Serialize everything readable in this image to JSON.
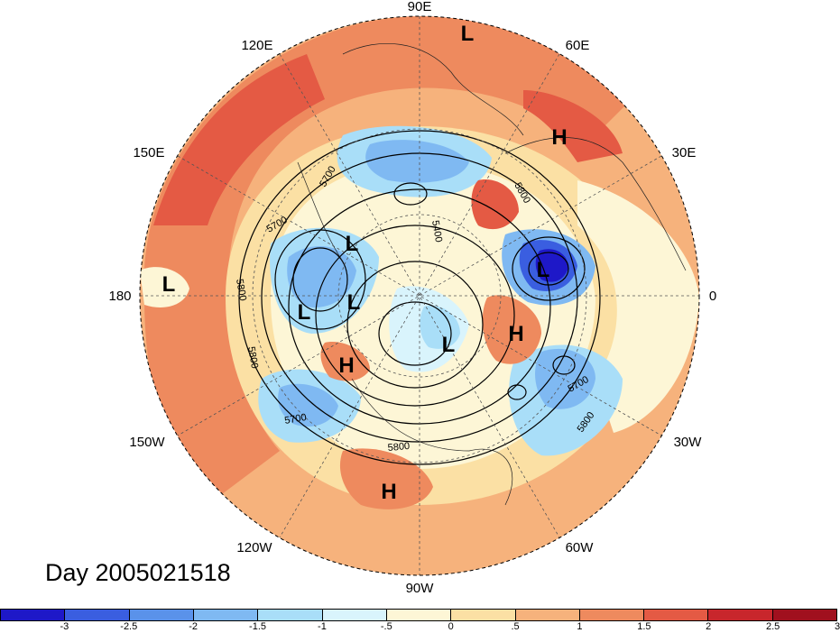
{
  "title": "Day 2005021518",
  "longitude_labels": {
    "top": "90E",
    "top_right": "60E",
    "right_upper": "30E",
    "right": "0",
    "right_lower": "30W",
    "bottom_right": "60W",
    "bottom": "90W",
    "bottom_left": "120W",
    "left_lower": "150W",
    "left": "180",
    "left_upper": "150E",
    "top_left": "120E"
  },
  "pressure_centers": [
    {
      "type": "L",
      "label": "L"
    },
    {
      "type": "L",
      "label": "L"
    },
    {
      "type": "L",
      "label": "L"
    },
    {
      "type": "L",
      "label": "L"
    },
    {
      "type": "L",
      "label": "L"
    },
    {
      "type": "L",
      "label": "L"
    },
    {
      "type": "L",
      "label": "L"
    },
    {
      "type": "H",
      "label": "H"
    },
    {
      "type": "H",
      "label": "H"
    },
    {
      "type": "H",
      "label": "H"
    },
    {
      "type": "H",
      "label": "H"
    }
  ],
  "contour_labels": [
    "5700",
    "5800",
    "5400",
    "5700",
    "5800",
    "5700",
    "5800",
    "5700",
    "5800",
    "5800"
  ],
  "colorbar": {
    "ticks": [
      "-3",
      "-2.5",
      "-2",
      "-1.5",
      "-1",
      "-.5",
      "0",
      ".5",
      "1",
      "1.5",
      "2",
      "2.5",
      "3"
    ],
    "colors": [
      "#1e18c8",
      "#3a5ee0",
      "#5a92ea",
      "#7fb9f2",
      "#a9def8",
      "#d9f4fc",
      "#fdf6d6",
      "#fbe0a4",
      "#f6b27c",
      "#ee8a5e",
      "#e45a44",
      "#c8262c",
      "#a0101e"
    ]
  }
}
